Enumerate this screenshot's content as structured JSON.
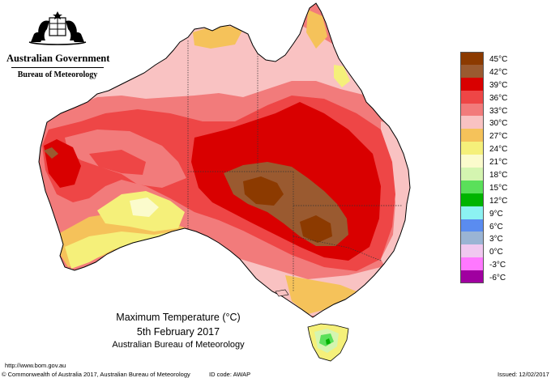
{
  "header": {
    "government": "Australian Government",
    "bureau": "Bureau of Meteorology"
  },
  "caption": {
    "title": "Maximum Temperature (°C)",
    "date": "5th February 2017",
    "organisation": "Australian Bureau of Meteorology"
  },
  "footer": {
    "url": "http://www.bom.gov.au",
    "copyright": "© Commonwealth of Australia 2017, Australian Bureau of Meteorology",
    "id_code": "ID code: AWAP",
    "issued": "Issued: 12/02/2017"
  },
  "legend": [
    {
      "label": "45°C",
      "color": "#8c3a00"
    },
    {
      "label": "42°C",
      "color": "#9a5a30"
    },
    {
      "label": "39°C",
      "color": "#d90000"
    },
    {
      "label": "36°C",
      "color": "#ee4646"
    },
    {
      "label": "33°C",
      "color": "#f27b7b"
    },
    {
      "label": "30°C",
      "color": "#f9c2c2"
    },
    {
      "label": "27°C",
      "color": "#f5c25a"
    },
    {
      "label": "24°C",
      "color": "#f5f07a"
    },
    {
      "label": "21°C",
      "color": "#fbfbcc"
    },
    {
      "label": "18°C",
      "color": "#d4f5b0"
    },
    {
      "label": "15°C",
      "color": "#5ae05a"
    },
    {
      "label": "12°C",
      "color": "#00b400"
    },
    {
      "label": "9°C",
      "color": "#8cf2f2"
    },
    {
      "label": "6°C",
      "color": "#5a8cf0"
    },
    {
      "label": "3°C",
      "color": "#9ab4d4"
    },
    {
      "label": "0°C",
      "color": "#f0c8f0"
    },
    {
      "label": "-3°C",
      "color": "#ff78ff"
    },
    {
      "label": "-6°C",
      "color": "#a000a0"
    }
  ]
}
